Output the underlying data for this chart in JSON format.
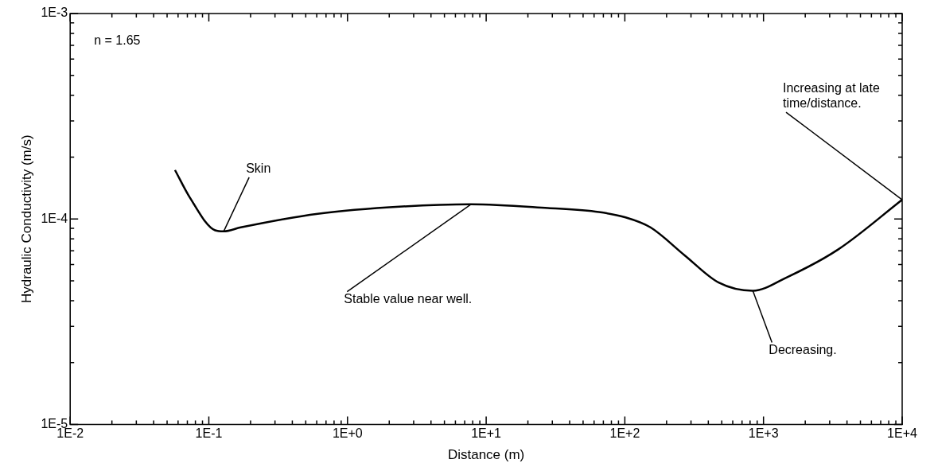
{
  "chart_data": {
    "type": "line",
    "xlabel": "Distance (m)",
    "ylabel": "Hydraulic Conductivity (m/s)",
    "log": "xy",
    "grid": false,
    "legend": false,
    "marker": "none",
    "line_style": "solid",
    "x": [
      0.057,
      0.073,
      0.111,
      0.128,
      0.17,
      0.61,
      2.5,
      7.8,
      27.9,
      65,
      100,
      153,
      270,
      475,
      838,
      1475,
      3450,
      10000
    ],
    "series": [
      {
        "color": "#000000",
        "values": [
          0.000173,
          0.000127,
          8.8e-05,
          8.7e-05,
          9.1e-05,
          0.000106,
          0.000115,
          0.000118,
          0.000113,
          0.000108,
          0.000102,
          9.1e-05,
          6.65e-05,
          4.9e-05,
          4.47e-05,
          5.2e-05,
          7.1e-05,
          0.000124
        ]
      }
    ],
    "xlim": [
      0.01,
      10000
    ],
    "ylim": [
      1e-05,
      0.001
    ],
    "xticks": [
      {
        "value": 0.01,
        "label": "1E-2"
      },
      {
        "value": 0.02,
        "label": null
      },
      {
        "value": 0.03,
        "label": null
      },
      {
        "value": 0.04,
        "label": null
      },
      {
        "value": 0.05,
        "label": null
      },
      {
        "value": 0.06,
        "label": null
      },
      {
        "value": 0.07,
        "label": null
      },
      {
        "value": 0.08,
        "label": null
      },
      {
        "value": 0.09,
        "label": null
      },
      {
        "value": 0.1,
        "label": "1E-1"
      },
      {
        "value": 0.2,
        "label": null
      },
      {
        "value": 0.3,
        "label": null
      },
      {
        "value": 0.4,
        "label": null
      },
      {
        "value": 0.5,
        "label": null
      },
      {
        "value": 0.6,
        "label": null
      },
      {
        "value": 0.7,
        "label": null
      },
      {
        "value": 0.8,
        "label": null
      },
      {
        "value": 0.9,
        "label": null
      },
      {
        "value": 1,
        "label": "1E+0"
      },
      {
        "value": 2,
        "label": null
      },
      {
        "value": 3,
        "label": null
      },
      {
        "value": 4,
        "label": null
      },
      {
        "value": 5,
        "label": null
      },
      {
        "value": 6,
        "label": null
      },
      {
        "value": 7,
        "label": null
      },
      {
        "value": 8,
        "label": null
      },
      {
        "value": 9,
        "label": null
      },
      {
        "value": 10,
        "label": "1E+1"
      },
      {
        "value": 20,
        "label": null
      },
      {
        "value": 30,
        "label": null
      },
      {
        "value": 40,
        "label": null
      },
      {
        "value": 50,
        "label": null
      },
      {
        "value": 60,
        "label": null
      },
      {
        "value": 70,
        "label": null
      },
      {
        "value": 80,
        "label": null
      },
      {
        "value": 90,
        "label": null
      },
      {
        "value": 100,
        "label": "1E+2"
      },
      {
        "value": 200,
        "label": null
      },
      {
        "value": 300,
        "label": null
      },
      {
        "value": 400,
        "label": null
      },
      {
        "value": 500,
        "label": null
      },
      {
        "value": 600,
        "label": null
      },
      {
        "value": 700,
        "label": null
      },
      {
        "value": 800,
        "label": null
      },
      {
        "value": 900,
        "label": null
      },
      {
        "value": 1000,
        "label": "1E+3"
      },
      {
        "value": 2000,
        "label": null
      },
      {
        "value": 3000,
        "label": null
      },
      {
        "value": 4000,
        "label": null
      },
      {
        "value": 5000,
        "label": null
      },
      {
        "value": 6000,
        "label": null
      },
      {
        "value": 7000,
        "label": null
      },
      {
        "value": 8000,
        "label": null
      },
      {
        "value": 9000,
        "label": null
      },
      {
        "value": 10000,
        "label": "1E+4"
      }
    ],
    "yticks": [
      {
        "value": 1e-05,
        "label": "1E-5"
      },
      {
        "value": 2e-05,
        "label": null
      },
      {
        "value": 3e-05,
        "label": null
      },
      {
        "value": 4e-05,
        "label": null
      },
      {
        "value": 5e-05,
        "label": null
      },
      {
        "value": 6e-05,
        "label": null
      },
      {
        "value": 7e-05,
        "label": null
      },
      {
        "value": 8e-05,
        "label": null
      },
      {
        "value": 9e-05,
        "label": null
      },
      {
        "value": 0.0001,
        "label": "1E-4"
      },
      {
        "value": 0.0002,
        "label": null
      },
      {
        "value": 0.0003,
        "label": null
      },
      {
        "value": 0.0004,
        "label": null
      },
      {
        "value": 0.0005,
        "label": null
      },
      {
        "value": 0.0006,
        "label": null
      },
      {
        "value": 0.0007,
        "label": null
      },
      {
        "value": 0.0008,
        "label": null
      },
      {
        "value": 0.0009,
        "label": null
      },
      {
        "value": 0.001,
        "label": "1E-3"
      }
    ],
    "annotations": [
      "n = 1.65",
      {
        "text": "Skin",
        "x": 0.128,
        "y": 8.7e-05
      },
      {
        "text": "Stable value near well.",
        "x": 7.8,
        "y": 0.000118
      },
      {
        "text": "Decreasing.",
        "x": 838,
        "y": 4.47e-05
      },
      {
        "text": "Increasing at late time/distance.",
        "x": 10000,
        "y": 0.000124
      }
    ]
  }
}
